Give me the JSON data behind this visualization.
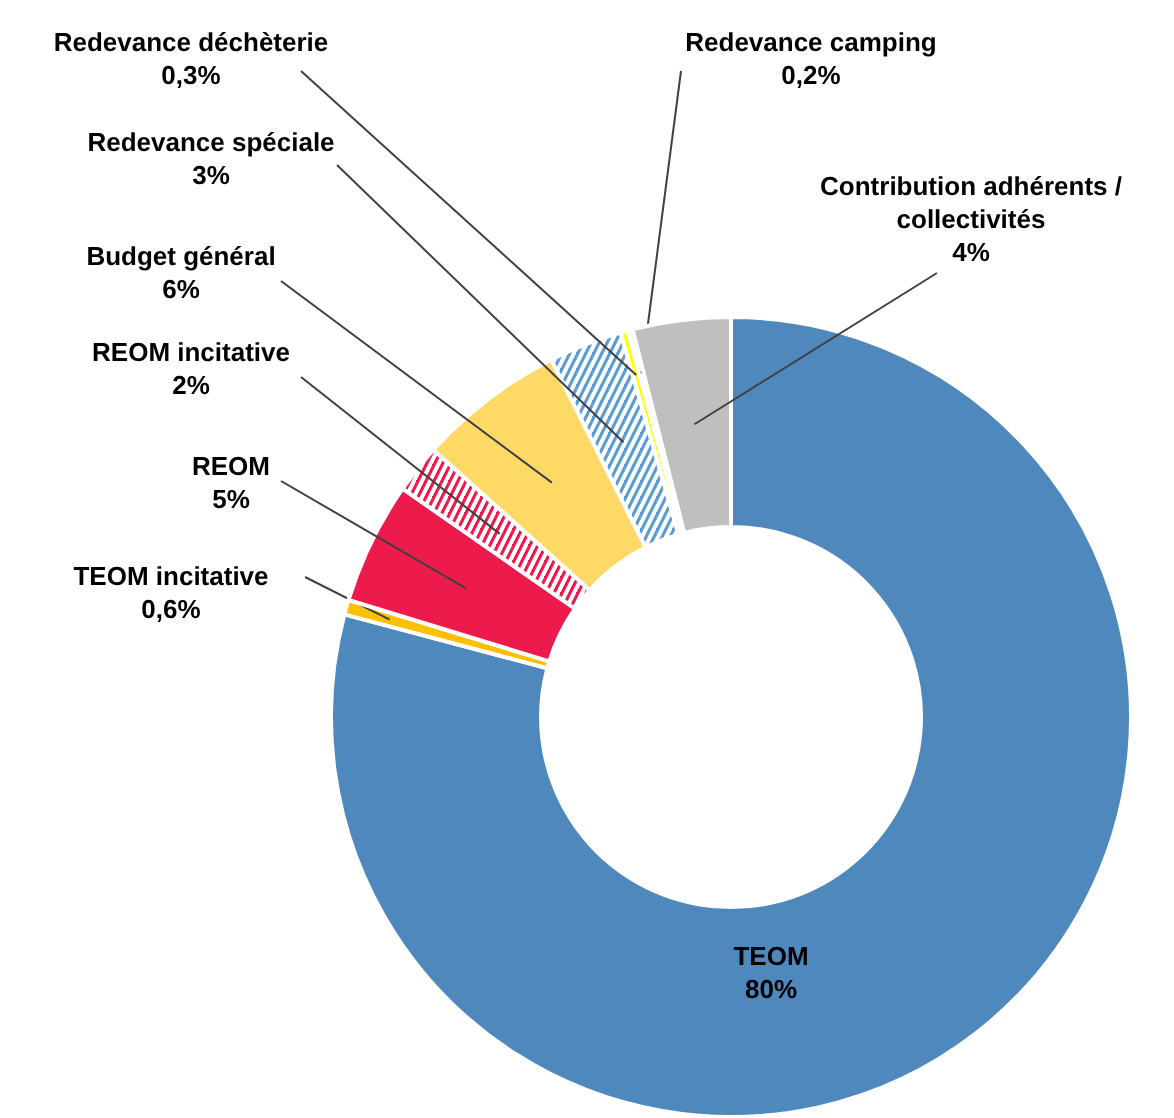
{
  "chart_data": {
    "type": "donut",
    "categories": [
      "TEOM",
      "TEOM incitative",
      "REOM",
      "REOM incitative",
      "Budget général",
      "Redevance spéciale",
      "Redevance déchèterie",
      "Redevance camping",
      "Contribution adhérents / collectivités"
    ],
    "values": [
      80,
      0.6,
      5,
      2,
      6,
      3,
      0.3,
      0.2,
      4
    ],
    "value_labels": [
      "80%",
      "0,6%",
      "5%",
      "2%",
      "6%",
      "3%",
      "0,3%",
      "0,2%",
      "4%"
    ],
    "colors": [
      "#4f88bd",
      "#ffc000",
      "#ec1b4b",
      "#ec1b4b",
      "#ffd966",
      "#5b9bd5",
      "#ffff00",
      "#f2f2f2",
      "#bfbfbf"
    ],
    "legend": false
  }
}
